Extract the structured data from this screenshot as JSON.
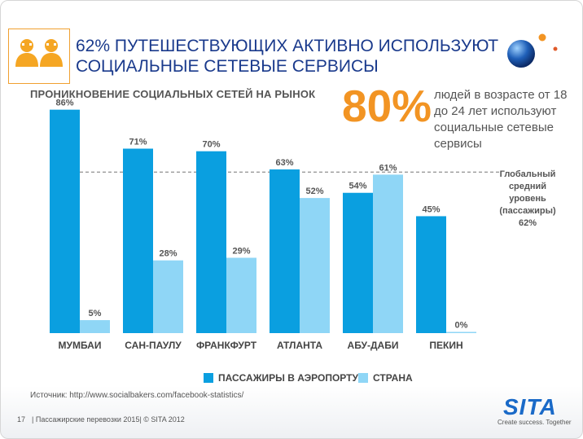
{
  "header": {
    "title_line1": "62% ПУТЕШЕСТВУЮЩИХ АКТИВНО ИСПОЛЬЗУЮТ",
    "title_line2": "СОЦИАЛЬНЫЕ СЕТЕВЫЕ СЕРВИСЫ",
    "icon": "people-icon"
  },
  "highlight": {
    "percent": "80%",
    "text": "людей в возрасте от 18 до 24 лет используют социальные сетевые сервисы"
  },
  "average_label": {
    "line1": "Глобальный",
    "line2": "средний",
    "line3": "уровень",
    "line4": "(пассажиры)",
    "line5": "62%"
  },
  "chart_data": {
    "type": "bar",
    "title": "ПРОНИКНОВЕНИЕ СОЦИАЛЬНЫХ СЕТЕЙ НА РЫНОК",
    "categories": [
      "МУМБАИ",
      "САН-ПАУЛУ",
      "ФРАНКФУРТ",
      "АТЛАНТА",
      "АБУ-ДАБИ",
      "ПЕКИН"
    ],
    "series": [
      {
        "name": "ПАССАЖИРЫ В АЭРОПОРТУ",
        "values": [
          86,
          71,
          70,
          63,
          54,
          45
        ],
        "color": "#0a9fe0"
      },
      {
        "name": "СТРАНА",
        "values": [
          5,
          28,
          29,
          52,
          61,
          0
        ],
        "color": "#8fd6f6"
      }
    ],
    "reference_line": {
      "value": 62
    },
    "ylim": [
      0,
      100
    ],
    "value_suffix": "%"
  },
  "source": "Источник: http://www.socialbakers.com/facebook-statistics/",
  "footer": {
    "page": "17",
    "text": "| Пассажирские перевозки 2015| © SITA 2012"
  },
  "brand": {
    "logo": "SITA",
    "tagline": "Create success. Together"
  }
}
